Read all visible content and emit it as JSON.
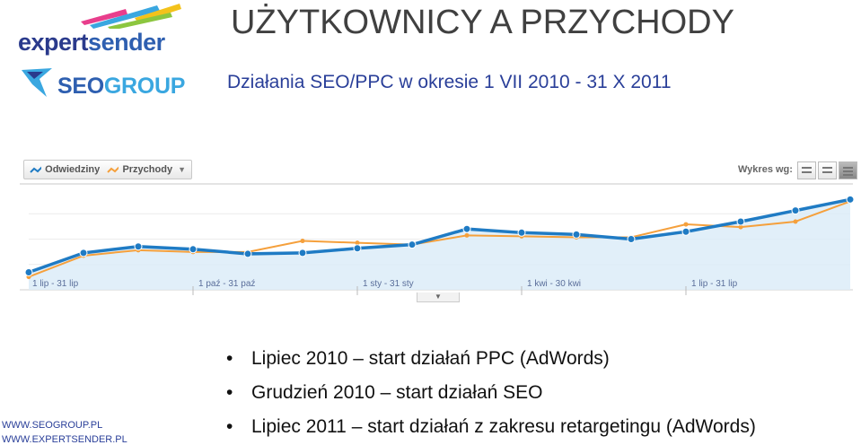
{
  "logos": {
    "expertsender": {
      "part1": "expert",
      "part2": "sender"
    },
    "seogroup": {
      "part1": "SEO",
      "part2": "GROUP"
    }
  },
  "title": "UŻYTKOWNICY A PRZYCHODY",
  "subtitle": "Działania SEO/PPC w okresie 1 VII 2010 - 31 X 2011",
  "toolbar": {
    "metric1": "Odwiedziny",
    "metric2": "Przychody",
    "view_label": "Wykres wg:"
  },
  "colors": {
    "visits_line": "#1f7bc4",
    "visits_fill": "#dcecf8",
    "revenue_line": "#f5a03c"
  },
  "chart_data": {
    "type": "line",
    "x": [
      1,
      2,
      3,
      4,
      5,
      6,
      7,
      8,
      9,
      10,
      11,
      12,
      13,
      14,
      15,
      16
    ],
    "tick_labels": [
      "1 lip - 31 lip",
      "1 paź - 31 paź",
      "1 sty - 31 sty",
      "1 kwi - 30 kwi",
      "1 lip - 31 lip"
    ],
    "tick_positions": [
      1,
      4,
      7,
      10,
      13
    ],
    "series": [
      {
        "name": "Odwiedziny",
        "values": [
          19,
          40,
          47,
          44,
          39,
          40,
          45,
          49,
          66,
          62,
          60,
          55,
          63,
          74,
          86,
          98
        ]
      },
      {
        "name": "Przychody",
        "values": [
          14,
          37,
          43,
          41,
          41,
          53,
          51,
          49,
          59,
          58,
          57,
          57,
          71,
          68,
          74,
          96
        ]
      }
    ],
    "ylim": [
      0,
      110
    ],
    "grid": true
  },
  "footer": {
    "link1": "WWW.SEOGROUP.PL",
    "link2": "WWW.EXPERTSENDER.PL"
  },
  "bullets": [
    {
      "symbol": "•",
      "text": "Lipiec 2010 – start działań PPC (AdWords)"
    },
    {
      "symbol": "•",
      "text": "Grudzień 2010 – start działań SEO"
    },
    {
      "symbol": "•",
      "text": "Lipiec 2011 – start działań z zakresu retargetingu (AdWords)"
    }
  ]
}
